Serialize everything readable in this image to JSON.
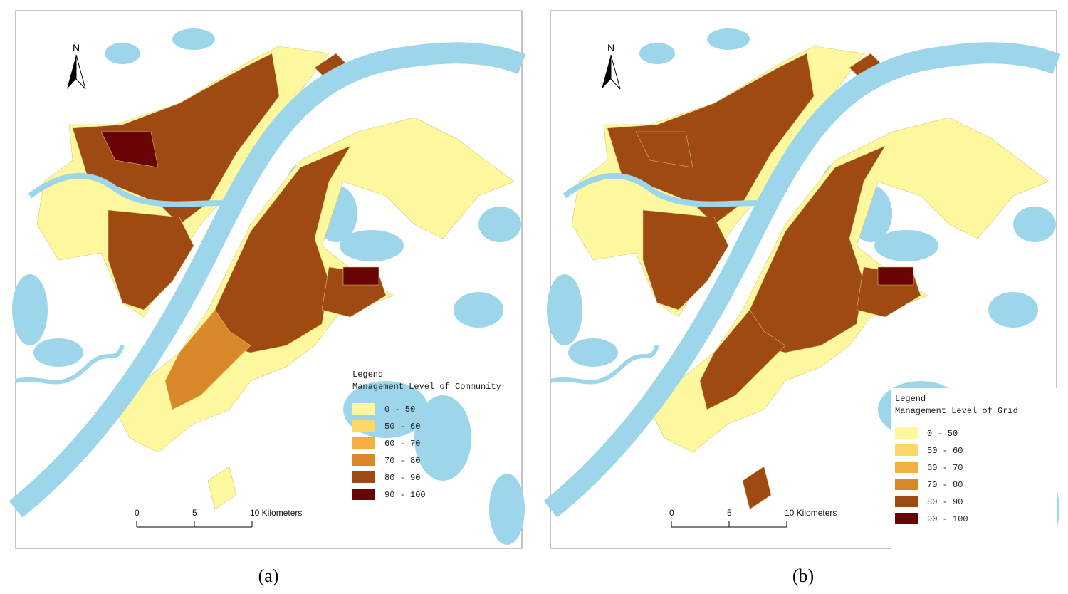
{
  "panels": [
    {
      "caption": "(a)",
      "north": "N",
      "legend": {
        "title": "Legend",
        "subtitle": "Management Level of Community",
        "classes": [
          {
            "label": "0 - 50",
            "color": "#fdf79e"
          },
          {
            "label": "50 - 60",
            "color": "#fbd868"
          },
          {
            "label": "60 - 70",
            "color": "#f4b03f"
          },
          {
            "label": "70 - 80",
            "color": "#d9892a"
          },
          {
            "label": "80 - 90",
            "color": "#9e4a12"
          },
          {
            "label": "90 - 100",
            "color": "#6a0303"
          }
        ]
      },
      "scale_bar": {
        "labels": [
          "0",
          "5",
          "10 Kilometers"
        ]
      }
    },
    {
      "caption": "(b)",
      "north": "N",
      "legend": {
        "title": "Legend",
        "subtitle": "Management Level of Grid",
        "classes": [
          {
            "label": "0 - 50",
            "color": "#fdf79e"
          },
          {
            "label": "50 - 60",
            "color": "#fbd868"
          },
          {
            "label": "60 - 70",
            "color": "#f4b03f"
          },
          {
            "label": "70 - 80",
            "color": "#d9892a"
          },
          {
            "label": "80 - 90",
            "color": "#9e4a12"
          },
          {
            "label": "90 - 100",
            "color": "#6a0303"
          }
        ]
      },
      "scale_bar": {
        "labels": [
          "0",
          "5",
          "10 Kilometers"
        ]
      }
    }
  ]
}
